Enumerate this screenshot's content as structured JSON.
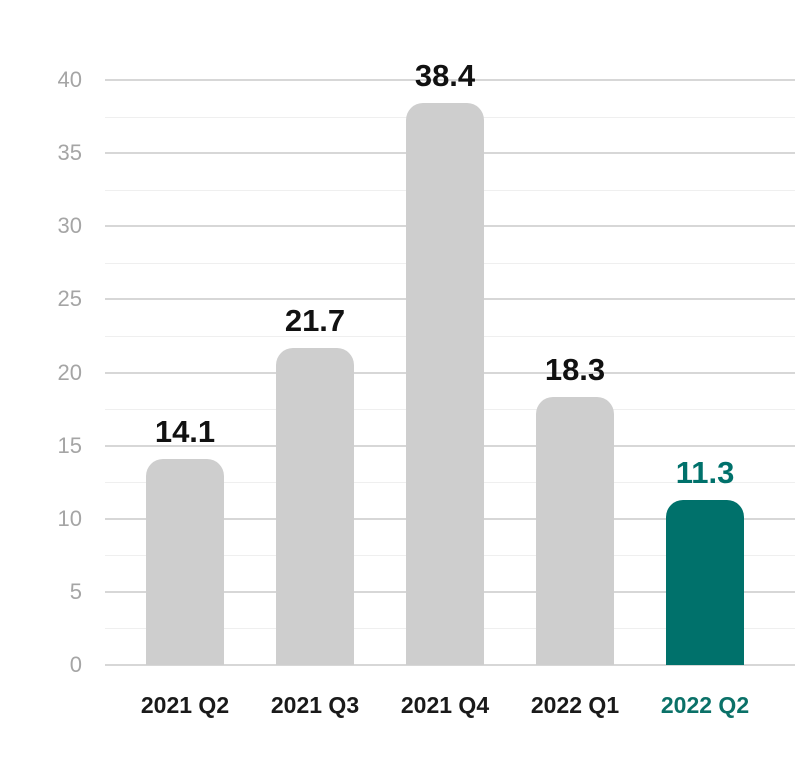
{
  "chart_data": {
    "type": "bar",
    "categories": [
      "2021 Q2",
      "2021 Q3",
      "2021 Q4",
      "2022 Q1",
      "2022 Q2"
    ],
    "values": [
      14.1,
      21.7,
      38.4,
      18.3,
      11.3
    ],
    "value_labels": [
      "14.1",
      "21.7",
      "38.4",
      "18.3",
      "11.3"
    ],
    "title": "",
    "xlabel": "",
    "ylabel": "",
    "ylim": [
      0,
      40
    ],
    "yticks": [
      0,
      5,
      10,
      15,
      20,
      25,
      30,
      35,
      40
    ],
    "minor_grid_step": 2.5,
    "grid": "horizontal-only",
    "legend": "none",
    "highlight_index": 4,
    "colors": {
      "bar_default": "#cecece",
      "bar_highlight": "#00716b",
      "value_label_default": "#111111",
      "value_label_highlight": "#00716b",
      "category_label_default": "#1a1a1a",
      "category_label_highlight": "#0b7168",
      "axis_tick_label": "#a5a5a5",
      "grid_major": "#d7d7d7",
      "grid_minor": "#efefef",
      "background": "#ffffff"
    }
  }
}
